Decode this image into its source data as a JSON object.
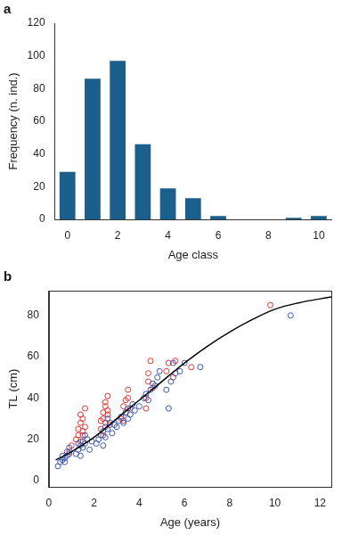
{
  "chart_data": [
    {
      "type": "bar",
      "title": "a",
      "x_label": "Age class",
      "y_label": "Frequency (n. ind.)",
      "categories": [
        0,
        null,
        2,
        null,
        4,
        null,
        6,
        null,
        8,
        null,
        10
      ],
      "values": [
        29,
        86,
        97,
        46,
        19,
        13,
        2,
        0,
        0,
        1,
        2
      ],
      "color": "#1b5f8c",
      "ylim": [
        0,
        120
      ],
      "yticks": [
        0,
        20,
        40,
        60,
        80,
        100,
        120
      ],
      "grid": false
    },
    {
      "type": "scatter",
      "title": "b",
      "x_label": "Age (years)",
      "y_label": "TL (cm)",
      "xlim": [
        0,
        12.5
      ],
      "xticks": [
        0,
        2,
        4,
        6,
        8,
        10,
        12
      ],
      "ylim": [
        -3,
        92
      ],
      "yticks": [
        0,
        20,
        40,
        60,
        80
      ],
      "grid": false,
      "series": [
        {
          "color": "#3a56b0",
          "marker": "circle",
          "values": [
            [
              0.4,
              7
            ],
            [
              0.5,
              9
            ],
            [
              0.6,
              10
            ],
            [
              0.7,
              11
            ],
            [
              0.8,
              12
            ],
            [
              0.8,
              14
            ],
            [
              0.9,
              13
            ],
            [
              0.9,
              16
            ],
            [
              0.7,
              9
            ],
            [
              0.6,
              12
            ],
            [
              1.2,
              13
            ],
            [
              1.3,
              15
            ],
            [
              1.4,
              17
            ],
            [
              1.5,
              16
            ],
            [
              1.5,
              19
            ],
            [
              1.6,
              18
            ],
            [
              1.7,
              20
            ],
            [
              1.8,
              15
            ],
            [
              1.4,
              12
            ],
            [
              1.9,
              19
            ],
            [
              1.3,
              18
            ],
            [
              1.6,
              22
            ],
            [
              2.1,
              18
            ],
            [
              2.2,
              20
            ],
            [
              2.3,
              22
            ],
            [
              2.4,
              24
            ],
            [
              2.5,
              21
            ],
            [
              2.5,
              26
            ],
            [
              2.6,
              25
            ],
            [
              2.7,
              28
            ],
            [
              2.8,
              23
            ],
            [
              2.9,
              27
            ],
            [
              2.4,
              17
            ],
            [
              2.6,
              30
            ],
            [
              3.0,
              26
            ],
            [
              3.1,
              29
            ],
            [
              3.2,
              31
            ],
            [
              3.3,
              28
            ],
            [
              3.4,
              33
            ],
            [
              3.5,
              35
            ],
            [
              3.6,
              32
            ],
            [
              3.7,
              37
            ],
            [
              3.5,
              30
            ],
            [
              3.8,
              34
            ],
            [
              4.0,
              36
            ],
            [
              4.2,
              40
            ],
            [
              4.3,
              42
            ],
            [
              4.5,
              44
            ],
            [
              4.6,
              47
            ],
            [
              4.7,
              46
            ],
            [
              4.8,
              50
            ],
            [
              4.9,
              53
            ],
            [
              4.4,
              39
            ],
            [
              5.2,
              44
            ],
            [
              5.3,
              35
            ],
            [
              5.4,
              48
            ],
            [
              5.5,
              57
            ],
            [
              5.6,
              52
            ],
            [
              5.8,
              53
            ],
            [
              6.0,
              57
            ],
            [
              6.7,
              55
            ],
            [
              10.7,
              80
            ]
          ]
        },
        {
          "color": "#e8312f",
          "marker": "circle",
          "values": [
            [
              0.9,
              14
            ],
            [
              1.0,
              17
            ],
            [
              1.2,
              20
            ],
            [
              1.3,
              25
            ],
            [
              1.4,
              28
            ],
            [
              1.4,
              32
            ],
            [
              1.5,
              22
            ],
            [
              1.5,
              30
            ],
            [
              1.6,
              26
            ],
            [
              1.3,
              22
            ],
            [
              1.6,
              35
            ],
            [
              1.5,
              24
            ],
            [
              1.4,
              19
            ],
            [
              2.3,
              25
            ],
            [
              2.4,
              30
            ],
            [
              2.4,
              33
            ],
            [
              2.5,
              28
            ],
            [
              2.5,
              36
            ],
            [
              2.6,
              32
            ],
            [
              2.6,
              41
            ],
            [
              2.4,
              22
            ],
            [
              2.5,
              38
            ],
            [
              2.7,
              27
            ],
            [
              2.3,
              29
            ],
            [
              2.6,
              34
            ],
            [
              3.2,
              30
            ],
            [
              3.3,
              36
            ],
            [
              3.4,
              39
            ],
            [
              3.4,
              33
            ],
            [
              3.5,
              44
            ],
            [
              3.3,
              29
            ],
            [
              3.5,
              40
            ],
            [
              3.6,
              35
            ],
            [
              4.3,
              40
            ],
            [
              4.4,
              48
            ],
            [
              4.4,
              52
            ],
            [
              4.5,
              58
            ],
            [
              4.6,
              45
            ],
            [
              4.3,
              35
            ],
            [
              5.2,
              53
            ],
            [
              5.3,
              57
            ],
            [
              5.5,
              50
            ],
            [
              5.6,
              58
            ],
            [
              6.3,
              55
            ],
            [
              9.8,
              85
            ]
          ]
        },
        {
          "type": "line",
          "color": "#000000",
          "line_style": "solid",
          "values": [
            [
              0.3,
              10
            ],
            [
              1,
              14
            ],
            [
              2,
              21
            ],
            [
              3,
              30
            ],
            [
              4,
              39
            ],
            [
              5,
              48
            ],
            [
              6,
              57
            ],
            [
              7,
              65
            ],
            [
              8,
              72
            ],
            [
              9,
              78
            ],
            [
              10,
              83
            ],
            [
              11,
              86
            ],
            [
              12.5,
              89
            ]
          ]
        }
      ]
    }
  ]
}
